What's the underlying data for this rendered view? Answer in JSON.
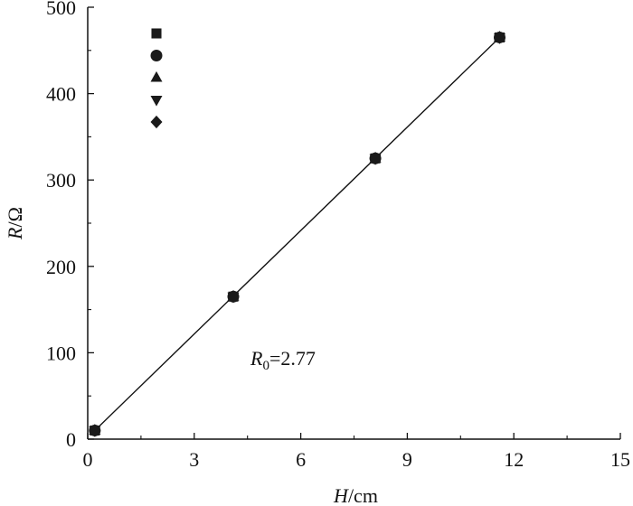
{
  "chart_data": {
    "type": "scatter",
    "title": "",
    "xlabel": {
      "var": "H",
      "unit": "/cm"
    },
    "ylabel": {
      "var": "R",
      "unit": "/Ω"
    },
    "xlim": [
      0,
      15
    ],
    "ylim": [
      0,
      500
    ],
    "x_ticks": [
      "0",
      "3",
      "6",
      "9",
      "12",
      "15"
    ],
    "y_ticks": [
      "0",
      "100",
      "200",
      "300",
      "400",
      "500"
    ],
    "grid": false,
    "legend_placement": "top-left",
    "legend_markers": [
      "square",
      "circle",
      "triangle-up",
      "triangle-down",
      "diamond"
    ],
    "series": [
      {
        "marker": "square",
        "x": [
          0.2,
          4.1,
          8.1,
          11.6
        ],
        "y": [
          10,
          165,
          325,
          465
        ]
      },
      {
        "marker": "circle",
        "x": [
          0.2,
          4.1,
          8.1,
          11.6
        ],
        "y": [
          10,
          165,
          325,
          465
        ]
      },
      {
        "marker": "triangle-up",
        "x": [
          0.2,
          4.1,
          8.1,
          11.6
        ],
        "y": [
          10,
          165,
          325,
          465
        ]
      },
      {
        "marker": "triangle-down",
        "x": [
          0.2,
          4.1,
          8.1,
          11.6
        ],
        "y": [
          10,
          165,
          325,
          465
        ]
      },
      {
        "marker": "diamond",
        "x": [
          0.2,
          4.1,
          8.1,
          11.6
        ],
        "y": [
          10,
          165,
          325,
          465
        ]
      }
    ],
    "fit_line": {
      "x": [
        0.2,
        11.6
      ],
      "y": [
        10,
        465
      ]
    },
    "annotation": {
      "main": "R",
      "sub": "0",
      "rest": "=2.77"
    },
    "marker_color": "#1a1a1a"
  }
}
